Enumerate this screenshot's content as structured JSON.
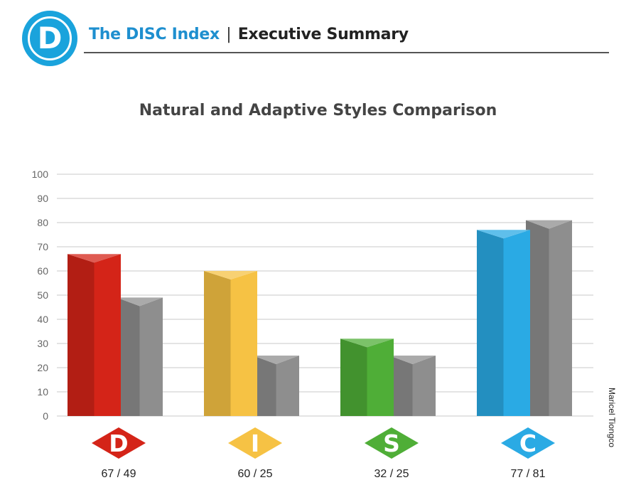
{
  "header": {
    "logo_letter": "D",
    "brand": "The DISC Index",
    "separator": "|",
    "subtitle": "Executive Summary"
  },
  "chart_title": "Natural and Adaptive Styles Comparison",
  "author": "Maricel Tiongco",
  "colors": {
    "D": "#d42418",
    "I": "#f6c244",
    "S": "#4fae37",
    "C": "#2aaae4",
    "adaptive": "#8e8e8e",
    "brand": "#1aa3dc"
  },
  "chart_data": {
    "type": "bar",
    "title": "Natural and Adaptive Styles Comparison",
    "categories": [
      "D",
      "I",
      "S",
      "C"
    ],
    "series": [
      {
        "values": [
          67,
          60,
          32,
          77
        ]
      },
      {
        "values": [
          49,
          25,
          25,
          81
        ]
      }
    ],
    "value_labels": [
      "67 / 49",
      "60 / 25",
      "32 / 25",
      "77 / 81"
    ],
    "yticks": [
      0,
      10,
      20,
      30,
      40,
      50,
      60,
      70,
      80,
      90,
      100
    ],
    "ylim": [
      0,
      100
    ],
    "grid": true,
    "legend": "none"
  }
}
